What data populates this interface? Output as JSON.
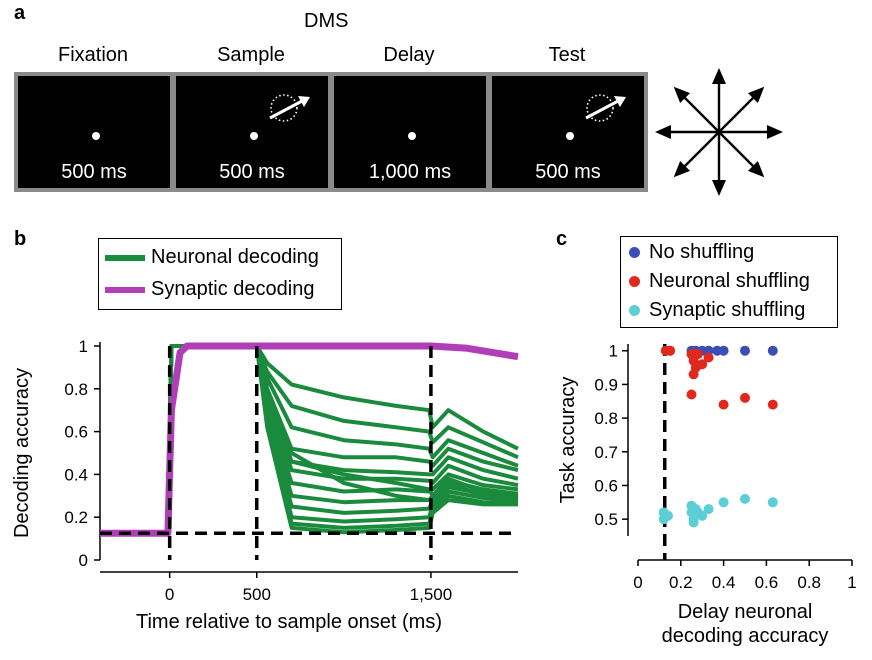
{
  "panel_a": {
    "letter": "a",
    "title": "DMS",
    "phases": [
      {
        "label": "Fixation",
        "duration": "500 ms",
        "stimulus": false
      },
      {
        "label": "Sample",
        "duration": "500 ms",
        "stimulus": true
      },
      {
        "label": "Delay",
        "duration": "1,000 ms",
        "stimulus": false
      },
      {
        "label": "Test",
        "duration": "500 ms",
        "stimulus": true
      }
    ],
    "direction_icon": "eight-direction-arrows-icon"
  },
  "panel_b": {
    "letter": "b",
    "legend": [
      {
        "label": "Neuronal decoding",
        "color": "#1a8a3c"
      },
      {
        "label": "Synaptic decoding",
        "color": "#b03fb7"
      }
    ]
  },
  "panel_c": {
    "letter": "c",
    "legend": [
      {
        "label": "No shuffling",
        "color": "#3a4fb4"
      },
      {
        "label": "Neuronal shuffling",
        "color": "#e0281e"
      },
      {
        "label": "Synaptic shuffling",
        "color": "#5ccfd6"
      }
    ]
  },
  "chart_data": [
    {
      "type": "line",
      "xlabel": "Time relative to sample onset (ms)",
      "ylabel": "Decoding accuracy",
      "xlim": [
        -400,
        2000
      ],
      "ylim": [
        0,
        1
      ],
      "xticks": [
        0,
        500,
        1500
      ],
      "xtick_labels": [
        "0",
        "500",
        "1,500"
      ],
      "yticks": [
        0,
        0.2,
        0.4,
        0.6,
        0.8,
        1
      ],
      "ytick_labels": [
        "0",
        "0.2",
        "0.4",
        "0.6",
        "0.8",
        "1"
      ],
      "reference_lines": {
        "vertical_x": [
          0,
          500,
          1500
        ],
        "horizontal_y": [
          0.125
        ],
        "style": "dashed"
      },
      "series": [
        {
          "name": "Neuronal decoding",
          "color": "#1a8a3c",
          "x": [
            -400,
            -10,
            10,
            500,
            560,
            700,
            1000,
            1300,
            1490,
            1510,
            1600,
            1800,
            2000
          ],
          "curves": [
            [
              0.125,
              0.125,
              1,
              1,
              0.92,
              0.82,
              0.76,
              0.72,
              0.7,
              0.62,
              0.7,
              0.6,
              0.52
            ],
            [
              0.125,
              0.125,
              1,
              1,
              0.88,
              0.72,
              0.65,
              0.62,
              0.6,
              0.55,
              0.62,
              0.55,
              0.48
            ],
            [
              0.125,
              0.125,
              1,
              1,
              0.85,
              0.62,
              0.56,
              0.54,
              0.52,
              0.48,
              0.56,
              0.5,
              0.44
            ],
            [
              0.125,
              0.125,
              1,
              1,
              0.8,
              0.52,
              0.48,
              0.48,
              0.46,
              0.44,
              0.52,
              0.46,
              0.42
            ],
            [
              0.125,
              0.125,
              1,
              1,
              0.78,
              0.46,
              0.42,
              0.41,
              0.4,
              0.4,
              0.48,
              0.42,
              0.38
            ],
            [
              0.125,
              0.125,
              1,
              1,
              0.75,
              0.42,
              0.38,
              0.38,
              0.37,
              0.36,
              0.44,
              0.38,
              0.35
            ],
            [
              0.125,
              0.125,
              1,
              1,
              0.72,
              0.36,
              0.32,
              0.33,
              0.32,
              0.33,
              0.4,
              0.35,
              0.33
            ],
            [
              0.125,
              0.125,
              1,
              1,
              0.7,
              0.3,
              0.27,
              0.28,
              0.28,
              0.3,
              0.37,
              0.33,
              0.31
            ],
            [
              0.125,
              0.125,
              1,
              1,
              0.68,
              0.25,
              0.22,
              0.23,
              0.24,
              0.28,
              0.34,
              0.31,
              0.29
            ],
            [
              0.125,
              0.125,
              1,
              1,
              0.66,
              0.2,
              0.18,
              0.19,
              0.2,
              0.26,
              0.32,
              0.29,
              0.28
            ],
            [
              0.125,
              0.125,
              1,
              1,
              0.64,
              0.17,
              0.15,
              0.16,
              0.17,
              0.24,
              0.3,
              0.27,
              0.27
            ],
            [
              0.125,
              0.125,
              1,
              1,
              0.62,
              0.15,
              0.13,
              0.14,
              0.15,
              0.22,
              0.28,
              0.26,
              0.26
            ],
            [
              0.125,
              0.125,
              1,
              1,
              0.7,
              0.46,
              0.4,
              0.36,
              0.33,
              0.3,
              0.38,
              0.32,
              0.3
            ],
            [
              0.125,
              0.125,
              1,
              1,
              0.74,
              0.5,
              0.36,
              0.3,
              0.28,
              0.29,
              0.36,
              0.3,
              0.28
            ]
          ]
        },
        {
          "name": "Synaptic decoding",
          "color": "#b03fb7",
          "x": [
            -400,
            -10,
            10,
            60,
            100,
            1500,
            1700,
            2000
          ],
          "values": [
            0.125,
            0.125,
            0.7,
            0.97,
            1,
            1,
            0.99,
            0.95
          ]
        }
      ]
    },
    {
      "type": "scatter",
      "xlabel": "Delay neuronal decoding accuracy",
      "ylabel": "Task accuracy",
      "xlim": [
        0,
        1
      ],
      "ylim": [
        0.45,
        1.02
      ],
      "xticks": [
        0,
        0.2,
        0.4,
        0.6,
        0.8,
        1
      ],
      "xtick_labels": [
        "0",
        "0.2",
        "0.4",
        "0.6",
        "0.8",
        "1"
      ],
      "yticks": [
        0.5,
        0.6,
        0.7,
        0.8,
        0.9,
        1
      ],
      "ytick_labels": [
        "0.5",
        "0.6",
        "0.7",
        "0.8",
        "0.9",
        "1"
      ],
      "reference_lines": {
        "vertical_x": [
          0.125
        ],
        "style": "dashed"
      },
      "series": [
        {
          "name": "No shuffling",
          "color": "#3a4fb4",
          "points": [
            [
              0.13,
              1
            ],
            [
              0.15,
              1
            ],
            [
              0.25,
              1
            ],
            [
              0.27,
              1
            ],
            [
              0.3,
              1
            ],
            [
              0.33,
              1
            ],
            [
              0.37,
              1
            ],
            [
              0.4,
              1
            ],
            [
              0.5,
              1
            ],
            [
              0.63,
              1
            ]
          ]
        },
        {
          "name": "Neuronal shuffling",
          "color": "#e0281e",
          "points": [
            [
              0.13,
              1
            ],
            [
              0.15,
              1
            ],
            [
              0.25,
              0.99
            ],
            [
              0.26,
              0.97
            ],
            [
              0.27,
              0.95
            ],
            [
              0.26,
              0.93
            ],
            [
              0.28,
              0.99
            ],
            [
              0.3,
              0.96
            ],
            [
              0.33,
              0.98
            ],
            [
              0.25,
              0.87
            ],
            [
              0.4,
              0.84
            ],
            [
              0.5,
              0.86
            ],
            [
              0.63,
              0.84
            ],
            [
              0.26,
              0.99
            ]
          ]
        },
        {
          "name": "Synaptic shuffling",
          "color": "#5ccfd6",
          "points": [
            [
              0.12,
              0.52
            ],
            [
              0.14,
              0.51
            ],
            [
              0.25,
              0.52
            ],
            [
              0.26,
              0.5
            ],
            [
              0.25,
              0.54
            ],
            [
              0.27,
              0.53
            ],
            [
              0.26,
              0.49
            ],
            [
              0.28,
              0.52
            ],
            [
              0.3,
              0.51
            ],
            [
              0.33,
              0.53
            ],
            [
              0.4,
              0.55
            ],
            [
              0.5,
              0.56
            ],
            [
              0.63,
              0.55
            ],
            [
              0.12,
              0.5
            ]
          ]
        }
      ]
    }
  ]
}
